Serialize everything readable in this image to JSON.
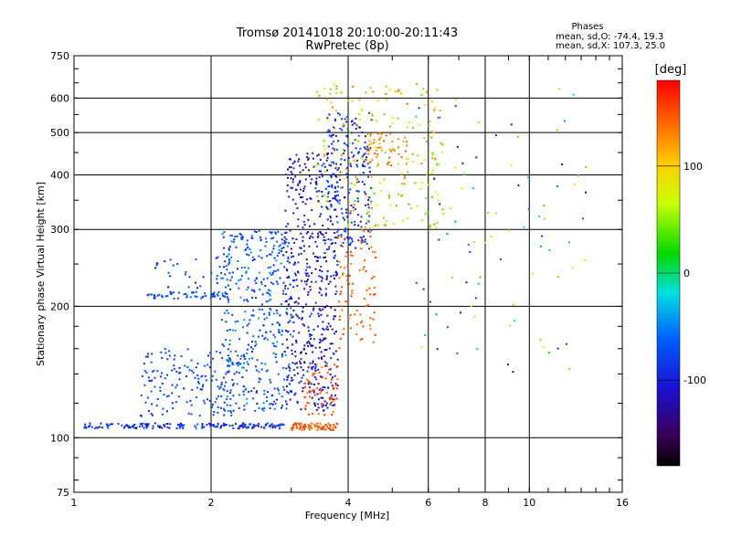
{
  "chart_data": {
    "type": "scatter",
    "title": "Tromsø 20141018 20:10:00-20:11:43",
    "subtitle": "RwPretec (8p)",
    "xlabel": "Frequency [MHz]",
    "ylabel": "Stationary phase Virtual Height [km]",
    "x_scale": "log",
    "y_scale": "log",
    "xlim": [
      1,
      16
    ],
    "ylim": [
      75,
      750
    ],
    "x_ticks": [
      1,
      2,
      4,
      6,
      8,
      10,
      16
    ],
    "x_tick_labels": [
      "1",
      "2",
      "4",
      "6",
      "8",
      "10",
      "16"
    ],
    "y_ticks": [
      75,
      100,
      200,
      300,
      400,
      500,
      600,
      750
    ],
    "y_tick_labels": [
      "75",
      "100",
      "200",
      "300",
      "400",
      "500",
      "600",
      "750"
    ],
    "grid": true,
    "phases_header": "Phases",
    "phases_stats": [
      "mean, sd,O: -74.4, 19.3",
      "mean, sd,X: 107.3, 25.0"
    ],
    "colorbar": {
      "label": "[deg]",
      "range": [
        -180,
        180
      ],
      "ticks": [
        100,
        0,
        -100
      ],
      "tick_labels": [
        "100",
        "0",
        "-100"
      ],
      "colormap": "rainbow"
    },
    "clusters": [
      {
        "x": [
          1.05,
          2.9
        ],
        "y": [
          105,
          108
        ],
        "phase": [
          -120,
          -60
        ],
        "n": 180
      },
      {
        "x": [
          1.4,
          2.3
        ],
        "y": [
          112,
          160
        ],
        "phase": [
          -95,
          -60
        ],
        "n": 160
      },
      {
        "x": [
          1.45,
          2.2
        ],
        "y": [
          208,
          216
        ],
        "phase": [
          -85,
          -60
        ],
        "n": 60
      },
      {
        "x": [
          1.5,
          2.2
        ],
        "y": [
          220,
          260
        ],
        "phase": [
          -100,
          -60
        ],
        "n": 30
      },
      {
        "x": [
          2.1,
          3.0
        ],
        "y": [
          115,
          300
        ],
        "phase": [
          -100,
          -40
        ],
        "n": 420
      },
      {
        "x": [
          2.9,
          3.8
        ],
        "y": [
          115,
          450
        ],
        "phase": [
          -140,
          -80
        ],
        "n": 520
      },
      {
        "x": [
          3.6,
          4.5
        ],
        "y": [
          270,
          560
        ],
        "phase": [
          -120,
          -60
        ],
        "n": 220
      },
      {
        "x": [
          3.0,
          3.8
        ],
        "y": [
          104,
          108
        ],
        "phase": [
          130,
          160
        ],
        "n": 80
      },
      {
        "x": [
          3.2,
          3.8
        ],
        "y": [
          112,
          150
        ],
        "phase": [
          130,
          165
        ],
        "n": 60
      },
      {
        "x": [
          3.8,
          4.6
        ],
        "y": [
          160,
          300
        ],
        "phase": [
          130,
          160
        ],
        "n": 90
      },
      {
        "x": [
          4.4,
          5.4
        ],
        "y": [
          420,
          500
        ],
        "phase": [
          120,
          150
        ],
        "n": 50
      },
      {
        "x": [
          3.4,
          6.5
        ],
        "y": [
          300,
          650
        ],
        "phase": [
          30,
          140
        ],
        "n": 220
      },
      {
        "x": [
          5.5,
          13.5
        ],
        "y": [
          140,
          640
        ],
        "phase": [
          -150,
          130
        ],
        "n": 90
      }
    ]
  }
}
